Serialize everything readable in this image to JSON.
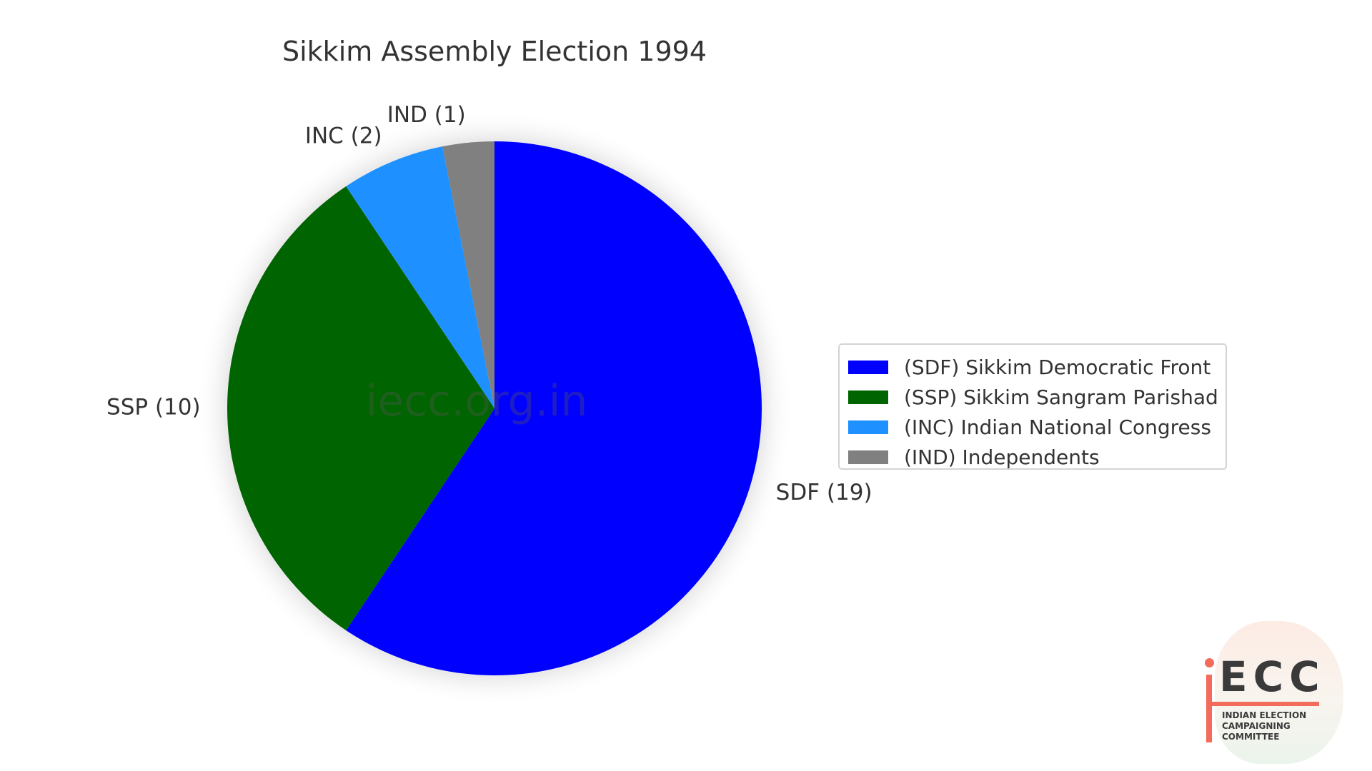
{
  "chart_data": {
    "type": "pie",
    "title": "Sikkim Assembly Election 1994",
    "slices": [
      {
        "key": "SDF",
        "label": "SDF (19)",
        "value": 19,
        "color": "#0000ff",
        "legend": "(SDF) Sikkim Democratic Front"
      },
      {
        "key": "SSP",
        "label": "SSP (10)",
        "value": 10,
        "color": "#006400",
        "legend": "(SSP) Sikkim Sangram Parishad"
      },
      {
        "key": "INC",
        "label": "INC (2)",
        "value": 2,
        "color": "#1e90ff",
        "legend": "(INC) Indian National Congress"
      },
      {
        "key": "IND",
        "label": "IND (1)",
        "value": 1,
        "color": "#808080",
        "legend": "(IND) Independents"
      }
    ],
    "legend_order": [
      "SDF",
      "SSP",
      "INC",
      "IND"
    ],
    "start_angle_deg": 90,
    "direction": "clockwise",
    "legend_position": "right",
    "watermark": "iecc.org.in"
  },
  "logo": {
    "letters": "ECC",
    "subtitle_line1": "INDIAN ELECTION",
    "subtitle_line2": "CAMPAIGNING COMMITTEE"
  }
}
